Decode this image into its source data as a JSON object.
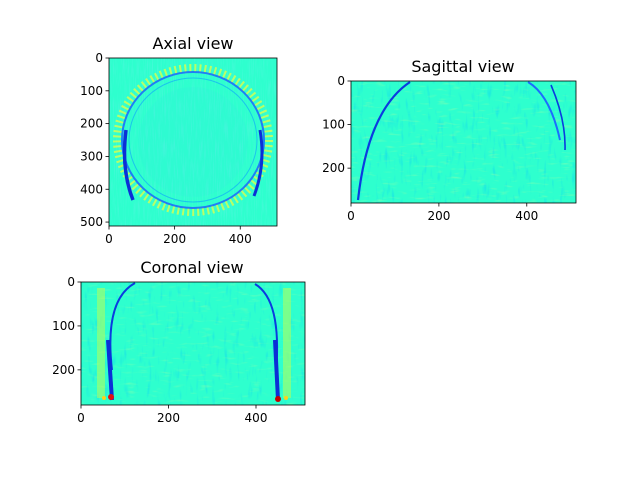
{
  "figure": {
    "background": "#ffffff",
    "colormap": "jet",
    "base_color": "#2effce"
  },
  "chart_data": [
    {
      "type": "heatmap",
      "id": "axial",
      "title": "Axial view",
      "xlabel": "",
      "ylabel": "",
      "xlim": [
        0,
        512
      ],
      "ylim": [
        512,
        0
      ],
      "xticks": [
        0,
        200,
        400
      ],
      "yticks": [
        0,
        100,
        200,
        300,
        400,
        500
      ],
      "image_shape": [
        512,
        512
      ],
      "content": "edge-filtered axial MRI slice: oval skull outline with dark blue rim on left/right and speckled yellow/red artifacts at the border"
    },
    {
      "type": "heatmap",
      "id": "sagittal",
      "title": "Sagittal view",
      "xlabel": "",
      "ylabel": "",
      "xlim": [
        0,
        512
      ],
      "ylim": [
        280,
        0
      ],
      "xticks": [
        0,
        200,
        400
      ],
      "yticks": [
        0,
        100,
        200
      ],
      "image_shape": [
        280,
        512
      ],
      "content": "edge-filtered sagittal slice: dome-shaped skull arc at top, blue/green vertical streak texture"
    },
    {
      "type": "heatmap",
      "id": "coronal",
      "title": "Coronal view",
      "xlabel": "",
      "ylabel": "",
      "xlim": [
        0,
        512
      ],
      "ylim": [
        280,
        0
      ],
      "xticks": [
        0,
        200,
        400
      ],
      "yticks": [
        0,
        100,
        200
      ],
      "image_shape": [
        280,
        512
      ],
      "content": "edge-filtered coronal slice: rounded skull outline with strong blue/yellow edges and red spots near lower left and lower right"
    }
  ]
}
